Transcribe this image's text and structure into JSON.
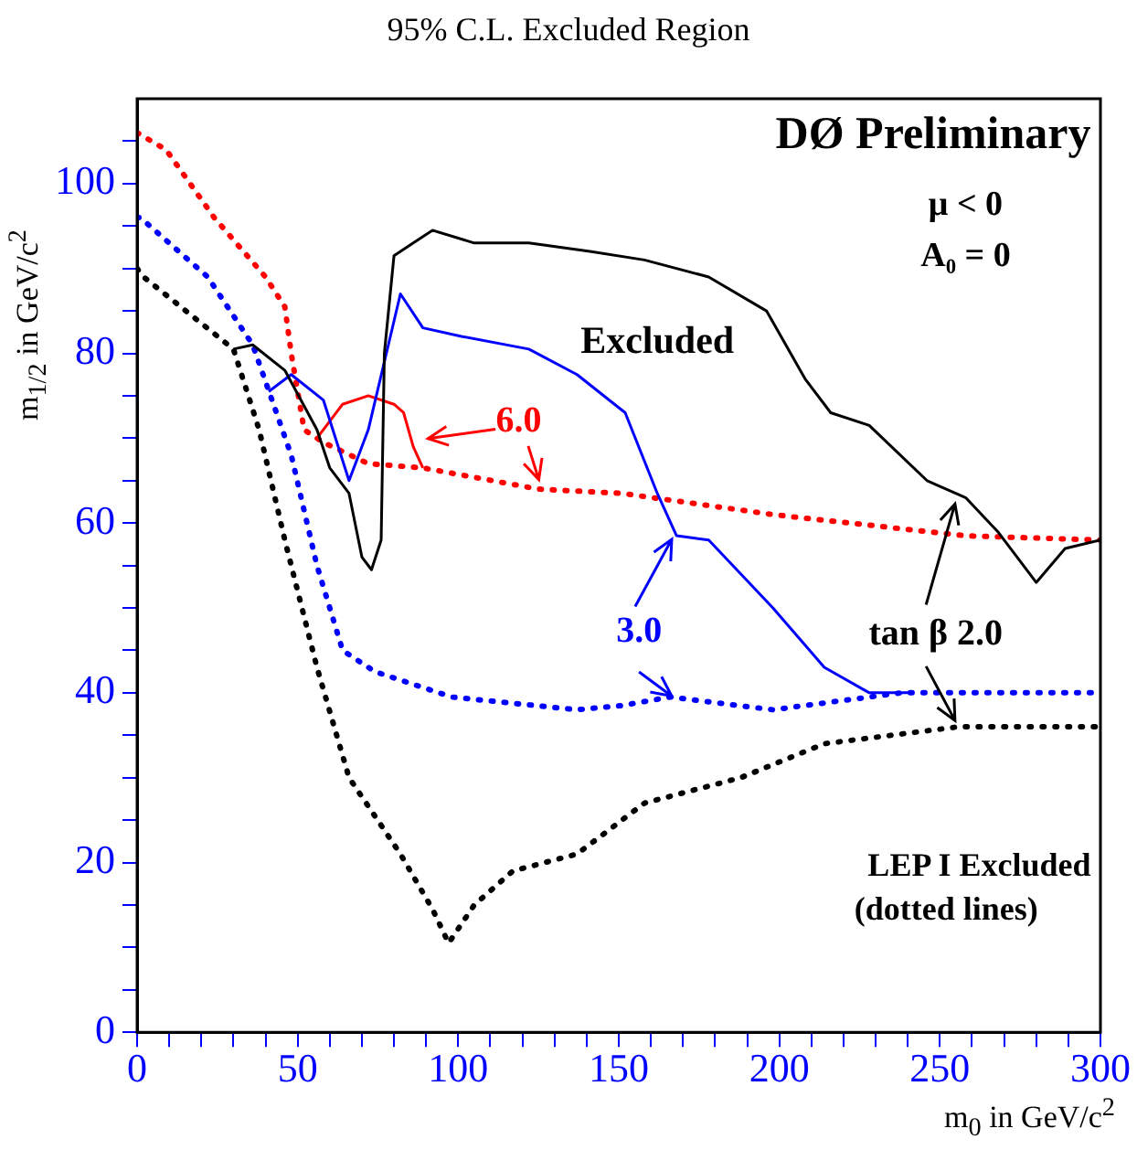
{
  "chart_data": {
    "type": "line",
    "title": "95% C.L. Excluded Region",
    "xlabel": "m$_{0}$ in GeV/c$^{2}$",
    "ylabel": "m$_{1/2}$ in GeV/c$^{2}$",
    "xlim": [
      0,
      300
    ],
    "xticks": [
      0,
      {
        "value": 10,
        "label": null
      },
      {
        "value": 20,
        "label": null
      },
      {
        "value": 30,
        "label": null
      },
      {
        "value": 40,
        "label": null
      },
      50,
      {
        "value": 60,
        "label": null
      },
      {
        "value": 70,
        "label": null
      },
      {
        "value": 80,
        "label": null
      },
      {
        "value": 90,
        "label": null
      },
      100,
      {
        "value": 110,
        "label": null
      },
      {
        "value": 120,
        "label": null
      },
      {
        "value": 130,
        "label": null
      },
      {
        "value": 140,
        "label": null
      },
      150,
      {
        "value": 160,
        "label": null
      },
      {
        "value": 170,
        "label": null
      },
      {
        "value": 180,
        "label": null
      },
      {
        "value": 190,
        "label": null
      },
      200,
      {
        "value": 210,
        "label": null
      },
      {
        "value": 220,
        "label": null
      },
      {
        "value": 230,
        "label": null
      },
      {
        "value": 240,
        "label": null
      },
      250,
      {
        "value": 260,
        "label": null
      },
      {
        "value": 270,
        "label": null
      },
      {
        "value": 280,
        "label": null
      },
      {
        "value": 290,
        "label": null
      },
      300
    ],
    "ylim": [
      0,
      110
    ],
    "yticks": [
      0,
      {
        "value": 5,
        "label": null
      },
      {
        "value": 10,
        "label": null
      },
      {
        "value": 15,
        "label": null
      },
      20,
      {
        "value": 25,
        "label": null
      },
      {
        "value": 30,
        "label": null
      },
      {
        "value": 35,
        "label": null
      },
      40,
      {
        "value": 45,
        "label": null
      },
      {
        "value": 50,
        "label": null
      },
      {
        "value": 55,
        "label": null
      },
      60,
      {
        "value": 65,
        "label": null
      },
      {
        "value": 70,
        "label": null
      },
      {
        "value": 75,
        "label": null
      },
      80,
      {
        "value": 85,
        "label": null
      },
      {
        "value": 90,
        "label": null
      },
      {
        "value": 95,
        "label": null
      },
      100,
      {
        "value": 105,
        "label": null
      }
    ],
    "grid": false,
    "legend": false,
    "marker": "none",
    "series": [
      {
        "color": "#000000",
        "line_style": "solid",
        "x": [
          30,
          36,
          46,
          56,
          60,
          66,
          70,
          73,
          76,
          77,
          80,
          86,
          92,
          105,
          122,
          141,
          158,
          178,
          196,
          208,
          216,
          228,
          246,
          258,
          268,
          280,
          289,
          300
        ],
        "values": [
          80.5,
          81,
          78,
          71,
          66.5,
          63.5,
          56,
          54.5,
          58,
          80,
          91.5,
          93,
          94.5,
          93,
          93,
          92,
          91,
          89,
          85,
          77,
          73,
          71.5,
          65,
          63,
          59,
          53,
          57,
          58
        ]
      },
      {
        "color": "#0000ff",
        "line_style": "solid",
        "x": [
          41,
          48,
          58,
          66,
          72,
          82,
          89,
          101,
          122,
          137,
          152,
          162,
          168,
          178,
          198,
          214,
          228,
          240
        ],
        "values": [
          75.5,
          77.5,
          74.5,
          65,
          71,
          87,
          83,
          82,
          80.5,
          77.5,
          73,
          63.5,
          58.5,
          58,
          50,
          43,
          40,
          40
        ]
      },
      {
        "color": "#ff0000",
        "line_style": "solid",
        "x": [
          56,
          64,
          72,
          80,
          83,
          86,
          89
        ],
        "values": [
          70,
          74,
          75,
          74,
          73,
          69,
          66.5
        ]
      },
      {
        "color": "#000000",
        "line_style": "dotted",
        "x": [
          0,
          2,
          30,
          38,
          46,
          56,
          66,
          82,
          92,
          97,
          105,
          117,
          137,
          158,
          188,
          214,
          256,
          300
        ],
        "values": [
          90,
          89,
          80.5,
          71,
          58,
          43,
          30,
          21,
          14.5,
          10.5,
          15,
          19,
          21,
          27,
          30,
          34,
          36,
          36
        ]
      },
      {
        "color": "#0000ff",
        "line_style": "dotted",
        "x": [
          0,
          1,
          22,
          36,
          48,
          56,
          64,
          74,
          98,
          137,
          151,
          166,
          198,
          238,
          300
        ],
        "values": [
          96,
          96,
          89,
          81,
          68,
          55,
          45,
          42.5,
          39.5,
          38,
          38.5,
          39.5,
          38,
          40,
          40
        ]
      },
      {
        "color": "#ff0000",
        "line_style": "dotted",
        "x": [
          0,
          9,
          24,
          40,
          46,
          48,
          52,
          58,
          72,
          89,
          125,
          151,
          198,
          258,
          300
        ],
        "values": [
          106,
          104,
          96,
          89,
          85.5,
          80,
          71,
          69.5,
          67,
          66.5,
          64,
          63.5,
          61,
          58.5,
          58
        ]
      }
    ],
    "annotations": [
      "DØ Preliminary",
      "μ < 0",
      "A₀ = 0",
      "Excluded",
      "6.0",
      "3.0",
      "tan β 2.0",
      "LEP I Excluded",
      "(dotted lines)"
    ]
  }
}
